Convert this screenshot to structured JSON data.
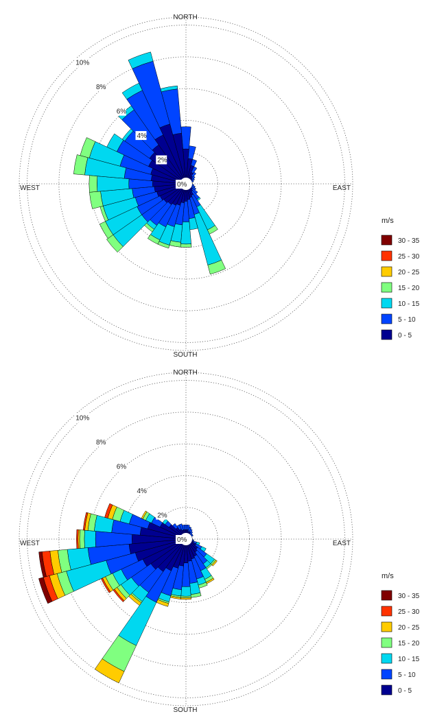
{
  "chart_data": [
    {
      "type": "polar-bar",
      "compass": {
        "north": "NORTH",
        "east": "EAST",
        "south": "SOUTH",
        "west": "WEST"
      },
      "ring_labels": [
        "0%",
        "2%",
        "4%",
        "6%",
        "8%",
        "10%"
      ],
      "rings": [
        2,
        4,
        6,
        8,
        10
      ],
      "rmax": 10.5,
      "legend": {
        "title": "m/s",
        "bins": [
          "30 - 35",
          "25 - 30",
          "20 - 25",
          "15 - 20",
          "10 - 15",
          "5 - 10",
          "0 - 5"
        ],
        "colors": [
          "#800000",
          "#ff3300",
          "#ffcc00",
          "#80ff80",
          "#00d8f0",
          "#0044ff",
          "#000090"
        ]
      },
      "bins_order": [
        "0 - 5",
        "5 - 10",
        "10 - 15",
        "15 - 20",
        "20 - 25",
        "25 - 30",
        "30 - 35"
      ],
      "sectors": [
        {
          "dir": 0,
          "cum": [
            2.2,
            3.6
          ]
        },
        {
          "dir": 10,
          "cum": [
            1.6,
            2.4
          ]
        },
        {
          "dir": 20,
          "cum": [
            1.2,
            1.6
          ]
        },
        {
          "dir": 30,
          "cum": [
            0.8,
            1.2
          ]
        },
        {
          "dir": 40,
          "cum": [
            0.6,
            0.9
          ]
        },
        {
          "dir": 50,
          "cum": [
            0.5,
            0.7
          ]
        },
        {
          "dir": 60,
          "cum": [
            0.4,
            0.6
          ]
        },
        {
          "dir": 70,
          "cum": [
            0.3,
            0.5
          ]
        },
        {
          "dir": 80,
          "cum": [
            0.3,
            0.4
          ]
        },
        {
          "dir": 90,
          "cum": [
            0.3,
            0.4
          ]
        },
        {
          "dir": 100,
          "cum": [
            0.3,
            0.5
          ]
        },
        {
          "dir": 110,
          "cum": [
            0.3,
            0.6
          ]
        },
        {
          "dir": 120,
          "cum": [
            0.4,
            0.7
          ]
        },
        {
          "dir": 130,
          "cum": [
            0.5,
            0.9
          ]
        },
        {
          "dir": 140,
          "cum": [
            0.6,
            1.2,
            1.3
          ]
        },
        {
          "dir": 150,
          "cum": [
            0.8,
            1.6,
            3.2,
            3.5
          ]
        },
        {
          "dir": 160,
          "cum": [
            0.9,
            2.0,
            5.3,
            5.9
          ]
        },
        {
          "dir": 170,
          "cum": [
            1.0,
            2.2,
            2.9
          ]
        },
        {
          "dir": 180,
          "cum": [
            1.1,
            2.4,
            3.8,
            4.0
          ]
        },
        {
          "dir": 190,
          "cum": [
            1.2,
            2.6,
            3.7,
            4.0
          ]
        },
        {
          "dir": 200,
          "cum": [
            1.4,
            2.8,
            4.0,
            4.2
          ]
        },
        {
          "dir": 210,
          "cum": [
            1.5,
            3.0,
            3.9,
            4.2
          ]
        },
        {
          "dir": 220,
          "cum": [
            1.6,
            3.2,
            3.5,
            3.7
          ]
        },
        {
          "dir": 230,
          "cum": [
            1.7,
            3.4,
            5.6,
            6.1
          ]
        },
        {
          "dir": 240,
          "cum": [
            1.8,
            3.4,
            5.6,
            6.0
          ]
        },
        {
          "dir": 250,
          "cum": [
            1.9,
            3.3,
            5.4,
            5.6
          ]
        },
        {
          "dir": 260,
          "cum": [
            2.0,
            3.4,
            5.4,
            6.1
          ]
        },
        {
          "dir": 270,
          "cum": [
            2.1,
            3.6,
            5.6,
            6.1
          ]
        },
        {
          "dir": 280,
          "cum": [
            2.2,
            3.9,
            6.4,
            7.1
          ]
        },
        {
          "dir": 290,
          "cum": [
            2.3,
            4.3,
            6.3,
            6.9
          ]
        },
        {
          "dir": 300,
          "cum": [
            2.6,
            4.8,
            5.5
          ]
        },
        {
          "dir": 310,
          "cum": [
            2.8,
            4.7,
            4.9
          ]
        },
        {
          "dir": 320,
          "cum": [
            3.0,
            5.7,
            6.0
          ]
        },
        {
          "dir": 330,
          "cum": [
            3.4,
            6.5,
            7.0
          ]
        },
        {
          "dir": 340,
          "cum": [
            3.9,
            8.0,
            8.6
          ]
        },
        {
          "dir": 350,
          "cum": [
            3.2,
            6.0,
            6.2
          ]
        }
      ]
    },
    {
      "type": "polar-bar",
      "compass": {
        "north": "NORTH",
        "east": "EAST",
        "south": "SOUTH",
        "west": "WEST"
      },
      "ring_labels": [
        "0%",
        "2%",
        "4%",
        "6%",
        "8%",
        "10%"
      ],
      "rings": [
        2,
        4,
        6,
        8,
        10
      ],
      "rmax": 10.5,
      "legend": {
        "title": "m/s",
        "bins": [
          "30 - 35",
          "25 - 30",
          "20 - 25",
          "15 - 20",
          "10 - 15",
          "5 - 10",
          "0 - 5"
        ],
        "colors": [
          "#800000",
          "#ff3300",
          "#ffcc00",
          "#80ff80",
          "#00d8f0",
          "#0044ff",
          "#000090"
        ]
      },
      "bins_order": [
        "0 - 5",
        "5 - 10",
        "10 - 15",
        "15 - 20",
        "20 - 25",
        "25 - 30",
        "30 - 35"
      ],
      "sectors": [
        {
          "dir": 0,
          "cum": [
            0.6,
            0.9
          ]
        },
        {
          "dir": 10,
          "cum": [
            0.6,
            0.9
          ]
        },
        {
          "dir": 20,
          "cum": [
            0.5,
            0.8
          ]
        },
        {
          "dir": 30,
          "cum": [
            0.5,
            0.7
          ]
        },
        {
          "dir": 40,
          "cum": [
            0.4,
            0.6
          ]
        },
        {
          "dir": 50,
          "cum": [
            0.4,
            0.5
          ]
        },
        {
          "dir": 60,
          "cum": [
            0.3,
            0.5
          ]
        },
        {
          "dir": 70,
          "cum": [
            0.3,
            0.4
          ]
        },
        {
          "dir": 80,
          "cum": [
            0.3,
            0.4
          ]
        },
        {
          "dir": 90,
          "cum": [
            0.3,
            0.4
          ]
        },
        {
          "dir": 100,
          "cum": [
            0.4,
            0.5
          ]
        },
        {
          "dir": 110,
          "cum": [
            0.5,
            0.7,
            0.9
          ]
        },
        {
          "dir": 120,
          "cum": [
            0.7,
            1.1,
            1.4
          ]
        },
        {
          "dir": 130,
          "cum": [
            0.9,
            1.6,
            2.2,
            2.3,
            2.4
          ]
        },
        {
          "dir": 140,
          "cum": [
            1.0,
            1.9,
            2.2,
            2.3
          ]
        },
        {
          "dir": 150,
          "cum": [
            1.2,
            2.2,
            2.8,
            3.0,
            3.1
          ]
        },
        {
          "dir": 160,
          "cum": [
            1.3,
            2.6,
            3.0,
            3.2
          ]
        },
        {
          "dir": 170,
          "cum": [
            1.4,
            2.8,
            3.5,
            3.7
          ]
        },
        {
          "dir": 180,
          "cum": [
            1.5,
            3.0,
            3.6,
            3.7,
            3.8
          ]
        },
        {
          "dir": 190,
          "cum": [
            1.7,
            3.2,
            3.6,
            3.7,
            3.8
          ]
        },
        {
          "dir": 200,
          "cum": [
            1.9,
            3.7,
            4.1,
            4.2,
            4.4
          ]
        },
        {
          "dir": 210,
          "cum": [
            2.2,
            4.4,
            7.4,
            9.2,
            10.0
          ]
        },
        {
          "dir": 220,
          "cum": [
            2.5,
            4.1,
            4.8,
            4.9,
            5.1
          ]
        },
        {
          "dir": 230,
          "cum": [
            2.7,
            4.2,
            5.0,
            5.3,
            5.5,
            5.6
          ]
        },
        {
          "dir": 240,
          "cum": [
            3.0,
            4.5,
            5.1,
            5.6,
            5.8,
            5.9
          ]
        },
        {
          "dir": 250,
          "cum": [
            3.3,
            5.2,
            7.8,
            8.4,
            8.9,
            9.3,
            9.6
          ]
        },
        {
          "dir": 260,
          "cum": [
            3.6,
            6.2,
            7.5,
            8.1,
            8.6,
            9.1,
            9.3
          ]
        },
        {
          "dir": 270,
          "cum": [
            3.4,
            5.7,
            6.4,
            6.7,
            6.8,
            6.9
          ]
        },
        {
          "dir": 280,
          "cum": [
            2.9,
            4.7,
            5.8,
            6.2,
            6.4,
            6.5
          ]
        },
        {
          "dir": 290,
          "cum": [
            2.5,
            3.7,
            4.3,
            4.8,
            5.1,
            5.3
          ]
        },
        {
          "dir": 300,
          "cum": [
            1.8,
            2.4,
            2.8,
            3.0,
            3.1
          ]
        },
        {
          "dir": 310,
          "cum": [
            1.3,
            1.6,
            1.8
          ]
        },
        {
          "dir": 320,
          "cum": [
            0.9,
            1.2
          ]
        },
        {
          "dir": 330,
          "cum": [
            0.7,
            1.0
          ]
        },
        {
          "dir": 340,
          "cum": [
            0.6,
            1.0
          ]
        },
        {
          "dir": 350,
          "cum": [
            0.6,
            0.9
          ]
        }
      ]
    }
  ]
}
